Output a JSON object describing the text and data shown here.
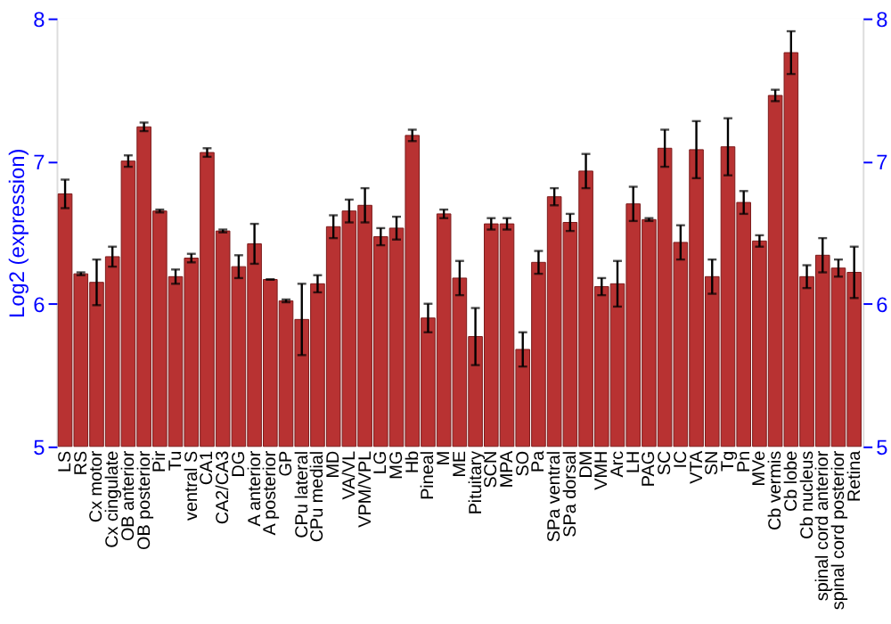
{
  "chart_data": {
    "type": "bar",
    "ylabel": "Log2 (expression)",
    "categories": [
      "LS",
      "RS",
      "Cx motor",
      "Cx cingulate",
      "OB anterior",
      "OB posterior",
      "Pir",
      "Tu",
      "ventral S",
      "CA1",
      "CA2/CA3",
      "DG",
      "A anterior",
      "A posterior",
      "GP",
      "CPu lateral",
      "CPu medial",
      "MD",
      "VA/VL",
      "VPM/VPL",
      "LG",
      "MG",
      "Hb",
      "Pineal",
      "M",
      "ME",
      "Pituitary",
      "SCN",
      "MPA",
      "SO",
      "Pa",
      "SPa ventral",
      "SPa dorsal",
      "DM",
      "VMH",
      "Arc",
      "LH",
      "PAG",
      "SC",
      "IC",
      "VTA",
      "SN",
      "Tg",
      "Pn",
      "MVe",
      "Cb vermis",
      "Cb lobe",
      "Cb nucleus",
      "spinal cord anterior",
      "spinal cord posterior",
      "Retina"
    ],
    "values": [
      6.77,
      6.21,
      6.15,
      6.33,
      7.0,
      7.24,
      6.65,
      6.19,
      6.32,
      7.06,
      6.51,
      6.26,
      6.42,
      6.17,
      6.02,
      5.89,
      6.14,
      6.54,
      6.65,
      6.69,
      6.47,
      6.53,
      7.18,
      5.9,
      6.63,
      6.18,
      5.77,
      6.56,
      6.56,
      5.68,
      6.29,
      6.75,
      6.57,
      6.93,
      6.12,
      6.14,
      6.7,
      6.59,
      7.09,
      6.43,
      7.08,
      6.19,
      7.1,
      6.71,
      6.44,
      7.46,
      7.76,
      6.19,
      6.34,
      6.25,
      6.22
    ],
    "errors": [
      0.1,
      0.01,
      0.16,
      0.07,
      0.04,
      0.03,
      0.01,
      0.05,
      0.03,
      0.03,
      0.01,
      0.08,
      0.14,
      0.0,
      0.01,
      0.25,
      0.06,
      0.08,
      0.08,
      0.12,
      0.06,
      0.08,
      0.04,
      0.1,
      0.03,
      0.12,
      0.2,
      0.04,
      0.04,
      0.12,
      0.08,
      0.06,
      0.06,
      0.12,
      0.06,
      0.16,
      0.12,
      0.01,
      0.13,
      0.12,
      0.2,
      0.12,
      0.2,
      0.08,
      0.04,
      0.04,
      0.15,
      0.08,
      0.12,
      0.06,
      0.18
    ],
    "color": "#b83232",
    "ylim": [
      5,
      8
    ],
    "yticks": [
      5,
      6,
      7,
      8
    ],
    "y2lim": [
      5,
      8
    ],
    "y2ticks": [
      5,
      6,
      7,
      8
    ],
    "grid": "y"
  }
}
